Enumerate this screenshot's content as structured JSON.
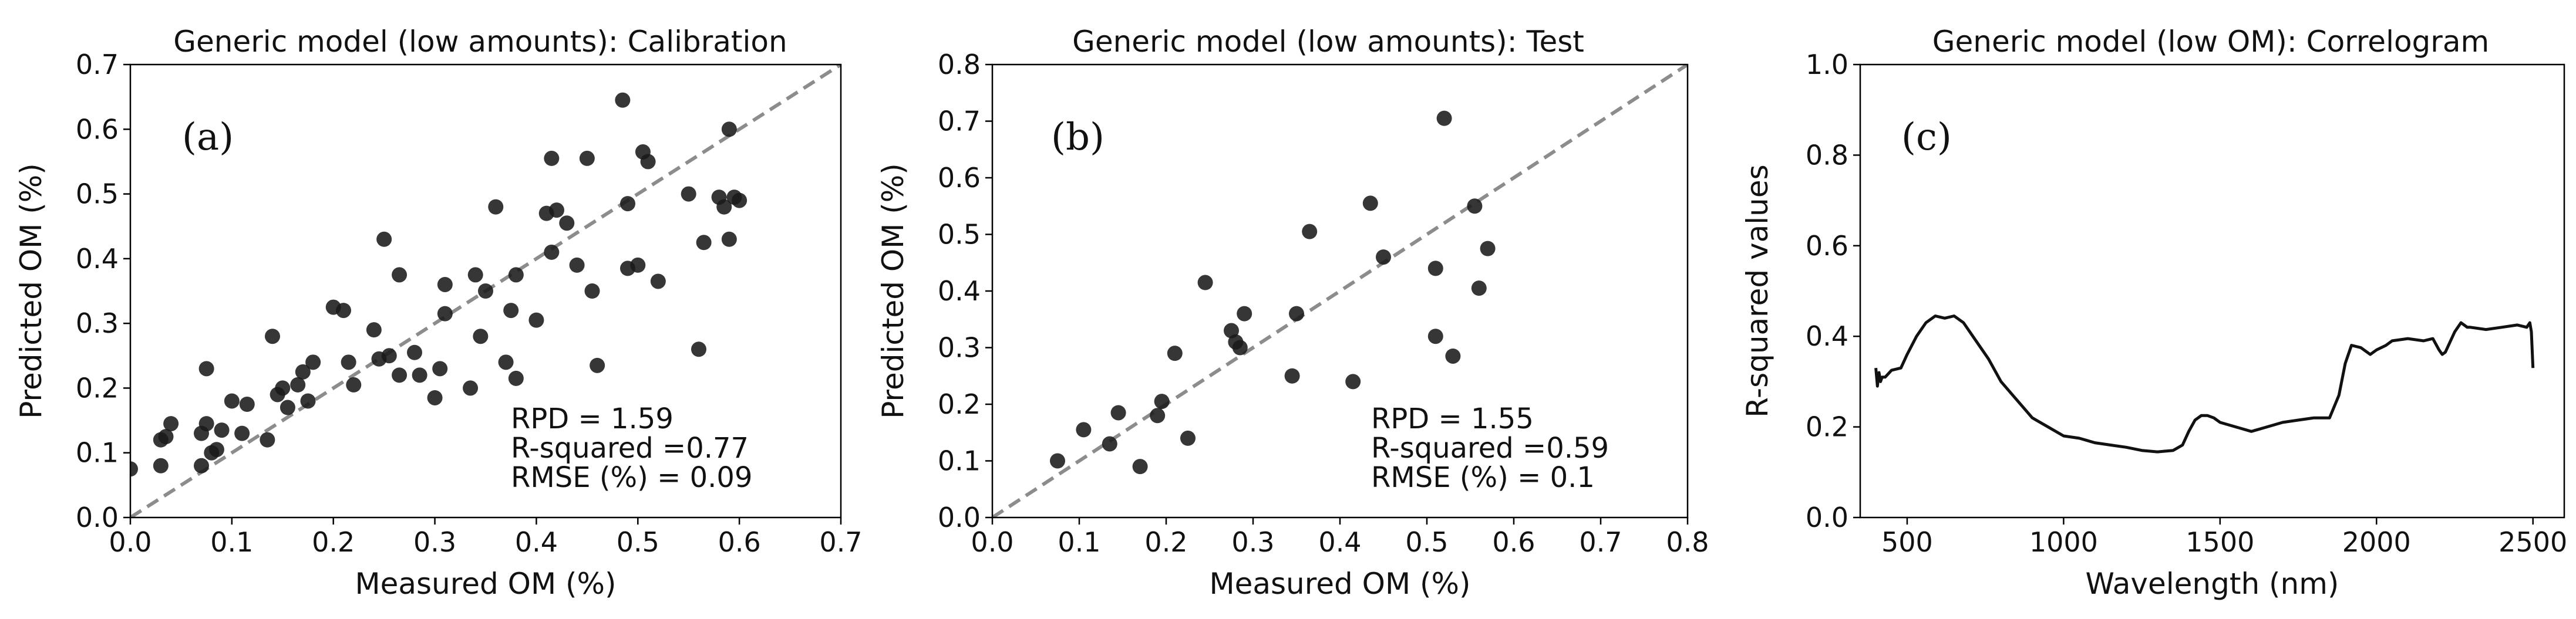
{
  "chart_data": [
    {
      "type": "scatter",
      "title": "Generic model (low amounts): Calibration",
      "xlabel": "Measured OM (%)",
      "ylabel": "Predicted OM (%)",
      "xlim": [
        0.0,
        0.7
      ],
      "ylim": [
        0.0,
        0.7
      ],
      "xticks": [
        "0.0",
        "0.1",
        "0.2",
        "0.3",
        "0.4",
        "0.5",
        "0.6",
        "0.7"
      ],
      "yticks": [
        "0.0",
        "0.1",
        "0.2",
        "0.3",
        "0.4",
        "0.5",
        "0.6",
        "0.7"
      ],
      "panel_label": "(a)",
      "stats": [
        "RPD = 1.59",
        "R-squared =0.77",
        "RMSE (%) = 0.09"
      ],
      "reference_line": "1:1",
      "points": [
        [
          0.0,
          0.075
        ],
        [
          0.03,
          0.08
        ],
        [
          0.03,
          0.12
        ],
        [
          0.035,
          0.125
        ],
        [
          0.04,
          0.145
        ],
        [
          0.07,
          0.08
        ],
        [
          0.07,
          0.13
        ],
        [
          0.075,
          0.145
        ],
        [
          0.08,
          0.1
        ],
        [
          0.075,
          0.23
        ],
        [
          0.085,
          0.105
        ],
        [
          0.09,
          0.135
        ],
        [
          0.1,
          0.18
        ],
        [
          0.11,
          0.13
        ],
        [
          0.115,
          0.175
        ],
        [
          0.135,
          0.12
        ],
        [
          0.14,
          0.28
        ],
        [
          0.145,
          0.19
        ],
        [
          0.15,
          0.2
        ],
        [
          0.155,
          0.17
        ],
        [
          0.165,
          0.205
        ],
        [
          0.17,
          0.225
        ],
        [
          0.175,
          0.18
        ],
        [
          0.18,
          0.24
        ],
        [
          0.2,
          0.325
        ],
        [
          0.21,
          0.32
        ],
        [
          0.215,
          0.24
        ],
        [
          0.22,
          0.205
        ],
        [
          0.24,
          0.29
        ],
        [
          0.245,
          0.245
        ],
        [
          0.25,
          0.43
        ],
        [
          0.255,
          0.25
        ],
        [
          0.265,
          0.375
        ],
        [
          0.265,
          0.22
        ],
        [
          0.28,
          0.255
        ],
        [
          0.285,
          0.22
        ],
        [
          0.3,
          0.185
        ],
        [
          0.305,
          0.23
        ],
        [
          0.31,
          0.315
        ],
        [
          0.31,
          0.36
        ],
        [
          0.335,
          0.2
        ],
        [
          0.34,
          0.375
        ],
        [
          0.345,
          0.28
        ],
        [
          0.35,
          0.35
        ],
        [
          0.36,
          0.48
        ],
        [
          0.37,
          0.24
        ],
        [
          0.375,
          0.32
        ],
        [
          0.38,
          0.375
        ],
        [
          0.38,
          0.215
        ],
        [
          0.4,
          0.305
        ],
        [
          0.41,
          0.47
        ],
        [
          0.415,
          0.555
        ],
        [
          0.415,
          0.41
        ],
        [
          0.42,
          0.475
        ],
        [
          0.43,
          0.455
        ],
        [
          0.44,
          0.39
        ],
        [
          0.45,
          0.555
        ],
        [
          0.455,
          0.35
        ],
        [
          0.46,
          0.235
        ],
        [
          0.485,
          0.645
        ],
        [
          0.49,
          0.485
        ],
        [
          0.49,
          0.385
        ],
        [
          0.5,
          0.39
        ],
        [
          0.505,
          0.565
        ],
        [
          0.51,
          0.55
        ],
        [
          0.52,
          0.365
        ],
        [
          0.55,
          0.5
        ],
        [
          0.56,
          0.26
        ],
        [
          0.565,
          0.425
        ],
        [
          0.58,
          0.495
        ],
        [
          0.585,
          0.48
        ],
        [
          0.59,
          0.6
        ],
        [
          0.59,
          0.43
        ],
        [
          0.595,
          0.495
        ],
        [
          0.6,
          0.49
        ]
      ]
    },
    {
      "type": "scatter",
      "title": "Generic model (low amounts): Test",
      "xlabel": "Measured OM (%)",
      "ylabel": "Predicted OM (%)",
      "xlim": [
        0.0,
        0.8
      ],
      "ylim": [
        0.0,
        0.8
      ],
      "xticks": [
        "0.0",
        "0.1",
        "0.2",
        "0.3",
        "0.4",
        "0.5",
        "0.6",
        "0.7",
        "0.8"
      ],
      "yticks": [
        "0.0",
        "0.1",
        "0.2",
        "0.3",
        "0.4",
        "0.5",
        "0.6",
        "0.7",
        "0.8"
      ],
      "panel_label": "(b)",
      "stats": [
        "RPD = 1.55",
        "R-squared =0.59",
        "RMSE (%) = 0.1"
      ],
      "reference_line": "1:1",
      "points": [
        [
          0.075,
          0.1
        ],
        [
          0.105,
          0.155
        ],
        [
          0.135,
          0.13
        ],
        [
          0.145,
          0.185
        ],
        [
          0.17,
          0.09
        ],
        [
          0.19,
          0.18
        ],
        [
          0.195,
          0.205
        ],
        [
          0.21,
          0.29
        ],
        [
          0.225,
          0.14
        ],
        [
          0.245,
          0.415
        ],
        [
          0.275,
          0.33
        ],
        [
          0.28,
          0.31
        ],
        [
          0.285,
          0.3
        ],
        [
          0.29,
          0.36
        ],
        [
          0.345,
          0.25
        ],
        [
          0.35,
          0.36
        ],
        [
          0.365,
          0.505
        ],
        [
          0.415,
          0.24
        ],
        [
          0.435,
          0.555
        ],
        [
          0.45,
          0.46
        ],
        [
          0.51,
          0.44
        ],
        [
          0.51,
          0.32
        ],
        [
          0.52,
          0.705
        ],
        [
          0.53,
          0.285
        ],
        [
          0.555,
          0.55
        ],
        [
          0.56,
          0.405
        ],
        [
          0.57,
          0.475
        ]
      ]
    },
    {
      "type": "line",
      "title": "Generic model (low OM): Correlogram",
      "xlabel": "Wavelength (nm)",
      "ylabel": "R-squared values",
      "xlim": [
        350,
        2600
      ],
      "ylim": [
        0.0,
        1.0
      ],
      "xticks": [
        "500",
        "1000",
        "1500",
        "2000",
        "2500"
      ],
      "yticks": [
        "0.0",
        "0.2",
        "0.4",
        "0.6",
        "0.8",
        "1.0"
      ],
      "panel_label": "(c)",
      "series": [
        {
          "name": "R-squared",
          "x": [
            400,
            405,
            410,
            415,
            420,
            430,
            450,
            480,
            500,
            530,
            560,
            590,
            620,
            650,
            680,
            720,
            760,
            800,
            850,
            900,
            950,
            1000,
            1050,
            1100,
            1150,
            1200,
            1250,
            1300,
            1350,
            1380,
            1400,
            1420,
            1440,
            1460,
            1480,
            1500,
            1550,
            1600,
            1650,
            1700,
            1750,
            1800,
            1850,
            1880,
            1900,
            1920,
            1950,
            1980,
            2000,
            2030,
            2050,
            2100,
            2150,
            2180,
            2200,
            2210,
            2220,
            2250,
            2270,
            2290,
            2300,
            2350,
            2400,
            2450,
            2480,
            2490,
            2495,
            2500
          ],
          "y": [
            0.33,
            0.29,
            0.32,
            0.3,
            0.31,
            0.31,
            0.325,
            0.33,
            0.36,
            0.4,
            0.43,
            0.445,
            0.44,
            0.445,
            0.43,
            0.39,
            0.35,
            0.3,
            0.26,
            0.22,
            0.2,
            0.18,
            0.175,
            0.165,
            0.16,
            0.155,
            0.148,
            0.145,
            0.148,
            0.16,
            0.19,
            0.215,
            0.225,
            0.225,
            0.22,
            0.21,
            0.2,
            0.19,
            0.2,
            0.21,
            0.215,
            0.22,
            0.22,
            0.27,
            0.34,
            0.38,
            0.375,
            0.36,
            0.37,
            0.38,
            0.39,
            0.395,
            0.39,
            0.395,
            0.37,
            0.36,
            0.365,
            0.41,
            0.43,
            0.42,
            0.42,
            0.415,
            0.42,
            0.425,
            0.42,
            0.43,
            0.41,
            0.33
          ]
        }
      ]
    }
  ]
}
